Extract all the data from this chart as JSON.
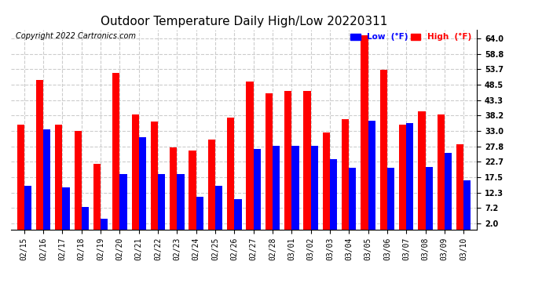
{
  "title": "Outdoor Temperature Daily High/Low 20220311",
  "copyright": "Copyright 2022 Cartronics.com",
  "dates": [
    "02/15",
    "02/16",
    "02/17",
    "02/18",
    "02/19",
    "02/20",
    "02/21",
    "02/22",
    "02/23",
    "02/24",
    "02/25",
    "02/26",
    "02/27",
    "02/28",
    "03/01",
    "03/02",
    "03/03",
    "03/04",
    "03/05",
    "03/06",
    "03/07",
    "03/08",
    "03/09",
    "03/10"
  ],
  "high": [
    35.0,
    50.0,
    35.0,
    33.0,
    22.0,
    52.5,
    38.5,
    36.0,
    27.5,
    26.5,
    30.0,
    37.5,
    49.5,
    45.5,
    46.5,
    46.5,
    32.5,
    37.0,
    65.0,
    53.5,
    35.0,
    39.5,
    38.5,
    28.5
  ],
  "low": [
    14.5,
    33.5,
    14.0,
    7.5,
    3.5,
    18.5,
    31.0,
    18.5,
    18.5,
    11.0,
    14.5,
    10.0,
    27.0,
    28.0,
    28.0,
    28.0,
    23.5,
    20.5,
    36.5,
    20.5,
    35.5,
    21.0,
    25.5,
    16.5
  ],
  "high_color": "#ff0000",
  "low_color": "#0000ff",
  "bg_color": "#ffffff",
  "grid_color": "#cccccc",
  "yticks": [
    2.0,
    7.2,
    12.3,
    17.5,
    22.7,
    27.8,
    33.0,
    38.2,
    43.3,
    48.5,
    53.7,
    58.8,
    64.0
  ],
  "ylim": [
    0,
    67
  ],
  "bar_width": 0.38,
  "title_fontsize": 11,
  "tick_fontsize": 7,
  "copyright_fontsize": 7
}
